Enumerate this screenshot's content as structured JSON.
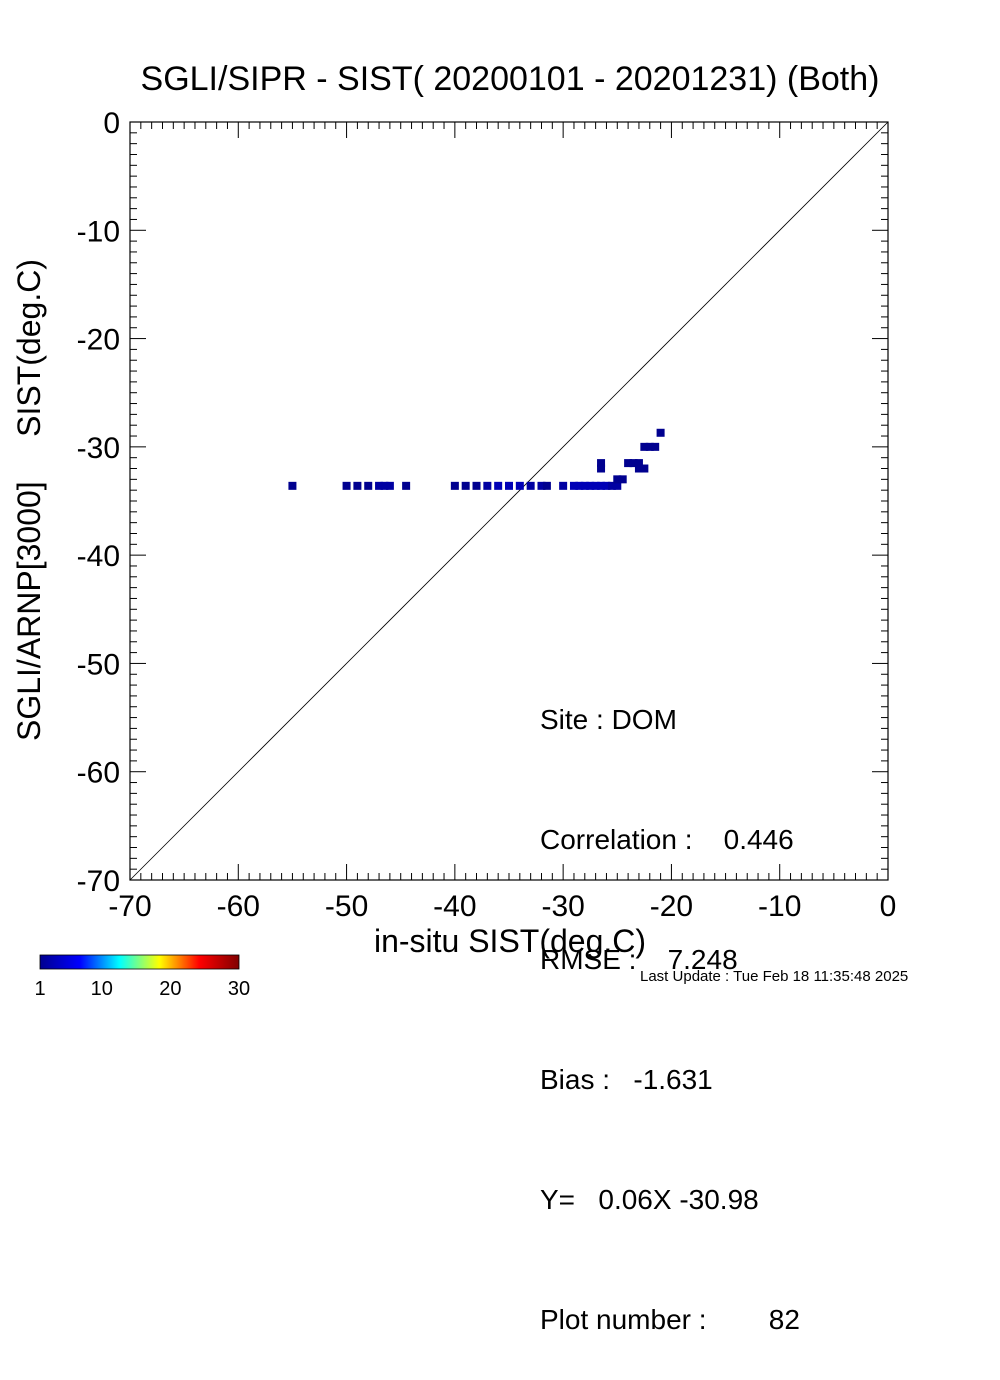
{
  "chart_data": {
    "type": "scatter",
    "title": "SGLI/SIPR - SIST( 20200101 - 20201231) (Both)",
    "xlabel": "in-situ SIST(deg.C)",
    "ylabel": "SGLI/ARNP[3000]     SIST(deg.C)",
    "xlim": [
      -70,
      0
    ],
    "ylim": [
      -70,
      0
    ],
    "x_ticks": [
      "-70",
      "-60",
      "-50",
      "-40",
      "-30",
      "-20",
      "-10",
      "0"
    ],
    "y_ticks": [
      "0",
      "-10",
      "-20",
      "-30",
      "-40",
      "-50",
      "-60",
      "-70"
    ],
    "reference_line": "1:1",
    "grid": false,
    "colorbar": {
      "ticks": [
        "1",
        "10",
        "20",
        "30"
      ],
      "range": [
        1,
        30
      ],
      "colors": [
        "#00008f",
        "#0000ff",
        "#00ffff",
        "#ffff00",
        "#ff0000",
        "#800000"
      ]
    },
    "points": [
      {
        "x": -55.0,
        "y": -33.6,
        "count": 1
      },
      {
        "x": -50.0,
        "y": -33.6,
        "count": 1
      },
      {
        "x": -49.0,
        "y": -33.6,
        "count": 1
      },
      {
        "x": -48.0,
        "y": -33.6,
        "count": 1
      },
      {
        "x": -47.0,
        "y": -33.6,
        "count": 2
      },
      {
        "x": -46.5,
        "y": -33.6,
        "count": 2
      },
      {
        "x": -46.0,
        "y": -33.6,
        "count": 2
      },
      {
        "x": -44.5,
        "y": -33.6,
        "count": 1
      },
      {
        "x": -40.0,
        "y": -33.6,
        "count": 1
      },
      {
        "x": -39.0,
        "y": -33.6,
        "count": 1
      },
      {
        "x": -38.0,
        "y": -33.6,
        "count": 1
      },
      {
        "x": -37.0,
        "y": -33.6,
        "count": 2
      },
      {
        "x": -36.0,
        "y": -33.6,
        "count": 3
      },
      {
        "x": -35.0,
        "y": -33.6,
        "count": 3
      },
      {
        "x": -34.0,
        "y": -33.6,
        "count": 3
      },
      {
        "x": -33.0,
        "y": -33.6,
        "count": 2
      },
      {
        "x": -32.0,
        "y": -33.6,
        "count": 2
      },
      {
        "x": -31.5,
        "y": -33.6,
        "count": 1
      },
      {
        "x": -30.0,
        "y": -33.6,
        "count": 2
      },
      {
        "x": -29.0,
        "y": -33.6,
        "count": 3
      },
      {
        "x": -28.5,
        "y": -33.6,
        "count": 3
      },
      {
        "x": -28.0,
        "y": -33.6,
        "count": 3
      },
      {
        "x": -27.5,
        "y": -33.6,
        "count": 3
      },
      {
        "x": -27.0,
        "y": -33.6,
        "count": 3
      },
      {
        "x": -26.5,
        "y": -33.6,
        "count": 3
      },
      {
        "x": -26.0,
        "y": -33.6,
        "count": 3
      },
      {
        "x": -25.5,
        "y": -33.6,
        "count": 2
      },
      {
        "x": -25.0,
        "y": -33.6,
        "count": 2
      },
      {
        "x": -25.0,
        "y": -33.0,
        "count": 1
      },
      {
        "x": -24.5,
        "y": -33.0,
        "count": 1
      },
      {
        "x": -26.5,
        "y": -31.5,
        "count": 1
      },
      {
        "x": -26.5,
        "y": -32.0,
        "count": 1
      },
      {
        "x": -24.0,
        "y": -31.5,
        "count": 1
      },
      {
        "x": -23.5,
        "y": -31.5,
        "count": 1
      },
      {
        "x": -23.0,
        "y": -31.5,
        "count": 1
      },
      {
        "x": -23.0,
        "y": -32.0,
        "count": 1
      },
      {
        "x": -22.5,
        "y": -32.0,
        "count": 1
      },
      {
        "x": -22.5,
        "y": -30.0,
        "count": 1
      },
      {
        "x": -22.0,
        "y": -30.0,
        "count": 1
      },
      {
        "x": -21.5,
        "y": -30.0,
        "count": 1
      },
      {
        "x": -21.0,
        "y": -28.7,
        "count": 1
      }
    ]
  },
  "stats": {
    "site": "Site : DOM",
    "correlation": "Correlation :    0.446",
    "rmse": "RMSE :    7.248",
    "bias": "Bias :   -1.631",
    "regression": "Y=   0.06X -30.98",
    "plot_number": "Plot number :        82"
  },
  "last_update": "Last Update : Tue Feb 18 11:35:48 2025"
}
